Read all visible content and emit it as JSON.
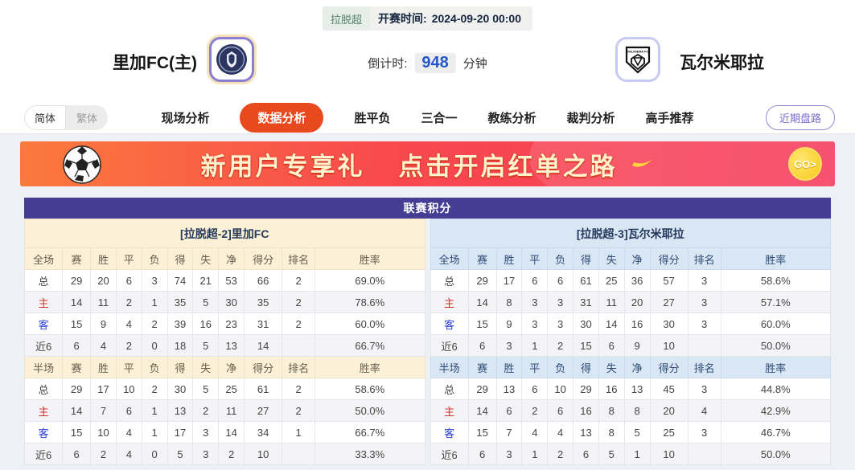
{
  "match_header": {
    "league_badge": "拉脱超",
    "kickoff_label": "开赛时间:",
    "kickoff_time": "2024-09-20 00:00",
    "home_team": "里加FC(主)",
    "away_team": "瓦尔米耶拉",
    "away_logo_text": "VALMIERA FC",
    "countdown_label": "倒计时:",
    "countdown_value": "948",
    "countdown_unit": "分钟"
  },
  "nav": {
    "lang_options": [
      "简体",
      "繁体"
    ],
    "lang_active": "简体",
    "items": [
      "现场分析",
      "数据分析",
      "胜平负",
      "三合一",
      "教练分析",
      "裁判分析",
      "高手推荐"
    ],
    "active_item": "数据分析",
    "recent_button": "近期盘路"
  },
  "banner": {
    "text_part1": "新用户专享礼",
    "text_part2": "点击开启红单之路",
    "go_label": "GO>"
  },
  "standings": {
    "title": "联赛积分",
    "left": {
      "team_header": "[拉脱超-2]里加FC",
      "sections": [
        {
          "label": "全场",
          "columns": [
            "赛",
            "胜",
            "平",
            "负",
            "得",
            "失",
            "净",
            "得分",
            "排名",
            "胜率"
          ],
          "rows": [
            {
              "label": "总",
              "type": "total",
              "cells": [
                "29",
                "20",
                "6",
                "3",
                "74",
                "21",
                "53",
                "66",
                "2",
                "69.0%"
              ]
            },
            {
              "label": "主",
              "type": "home",
              "cells": [
                "14",
                "11",
                "2",
                "1",
                "35",
                "5",
                "30",
                "35",
                "2",
                "78.6%"
              ]
            },
            {
              "label": "客",
              "type": "away",
              "cells": [
                "15",
                "9",
                "4",
                "2",
                "39",
                "16",
                "23",
                "31",
                "2",
                "60.0%"
              ]
            },
            {
              "label": "近6",
              "type": "recent6",
              "cells": [
                "6",
                "4",
                "2",
                "0",
                "18",
                "5",
                "13",
                "14",
                "",
                "66.7%"
              ]
            }
          ]
        },
        {
          "label": "半场",
          "columns": [
            "赛",
            "胜",
            "平",
            "负",
            "得",
            "失",
            "净",
            "得分",
            "排名",
            "胜率"
          ],
          "rows": [
            {
              "label": "总",
              "type": "total",
              "cells": [
                "29",
                "17",
                "10",
                "2",
                "30",
                "5",
                "25",
                "61",
                "2",
                "58.6%"
              ]
            },
            {
              "label": "主",
              "type": "home",
              "cells": [
                "14",
                "7",
                "6",
                "1",
                "13",
                "2",
                "11",
                "27",
                "2",
                "50.0%"
              ]
            },
            {
              "label": "客",
              "type": "away",
              "cells": [
                "15",
                "10",
                "4",
                "1",
                "17",
                "3",
                "14",
                "34",
                "1",
                "66.7%"
              ]
            },
            {
              "label": "近6",
              "type": "recent6",
              "cells": [
                "6",
                "2",
                "4",
                "0",
                "5",
                "3",
                "2",
                "10",
                "",
                "33.3%"
              ]
            }
          ]
        }
      ]
    },
    "right": {
      "team_header": "[拉脱超-3]瓦尔米耶拉",
      "sections": [
        {
          "label": "全场",
          "columns": [
            "赛",
            "胜",
            "平",
            "负",
            "得",
            "失",
            "净",
            "得分",
            "排名",
            "胜率"
          ],
          "rows": [
            {
              "label": "总",
              "type": "total",
              "cells": [
                "29",
                "17",
                "6",
                "6",
                "61",
                "25",
                "36",
                "57",
                "3",
                "58.6%"
              ]
            },
            {
              "label": "主",
              "type": "home",
              "cells": [
                "14",
                "8",
                "3",
                "3",
                "31",
                "11",
                "20",
                "27",
                "3",
                "57.1%"
              ]
            },
            {
              "label": "客",
              "type": "away",
              "cells": [
                "15",
                "9",
                "3",
                "3",
                "30",
                "14",
                "16",
                "30",
                "3",
                "60.0%"
              ]
            },
            {
              "label": "近6",
              "type": "recent6",
              "cells": [
                "6",
                "3",
                "1",
                "2",
                "15",
                "6",
                "9",
                "10",
                "",
                "50.0%"
              ]
            }
          ]
        },
        {
          "label": "半场",
          "columns": [
            "赛",
            "胜",
            "平",
            "负",
            "得",
            "失",
            "净",
            "得分",
            "排名",
            "胜率"
          ],
          "rows": [
            {
              "label": "总",
              "type": "total",
              "cells": [
                "29",
                "13",
                "6",
                "10",
                "29",
                "16",
                "13",
                "45",
                "3",
                "44.8%"
              ]
            },
            {
              "label": "主",
              "type": "home",
              "cells": [
                "14",
                "6",
                "2",
                "6",
                "16",
                "8",
                "8",
                "20",
                "4",
                "42.9%"
              ]
            },
            {
              "label": "客",
              "type": "away",
              "cells": [
                "15",
                "7",
                "4",
                "4",
                "13",
                "8",
                "5",
                "25",
                "3",
                "46.7%"
              ]
            },
            {
              "label": "近6",
              "type": "recent6",
              "cells": [
                "6",
                "3",
                "1",
                "2",
                "6",
                "5",
                "1",
                "10",
                "",
                "50.0%"
              ]
            }
          ]
        }
      ]
    }
  },
  "colors": {
    "nav_active_bg": "#e8491d",
    "standings_title_bg": "#453d94",
    "left_header_bg": "#fcf0d7",
    "right_header_bg": "#d9e6f3",
    "countdown_value_color": "#2356c8",
    "home_row_label": "#d43030",
    "away_row_label": "#2b3fd4",
    "banner_gradient": [
      "#fa7a3c",
      "#f53b5e"
    ],
    "page_bg": "#edf1f6"
  }
}
